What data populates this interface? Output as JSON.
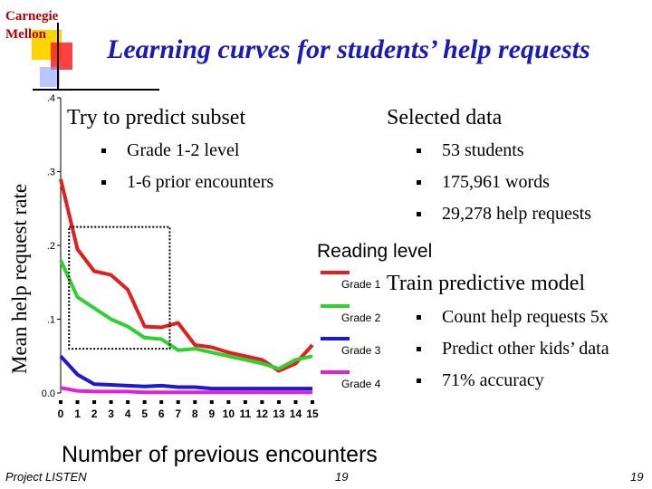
{
  "logo": {
    "line1": "Carnegie",
    "line2": "Mellon"
  },
  "slide_title": "Learning curves for students’ help requests",
  "left_box": {
    "heading": "Try to predict subset",
    "bullets": [
      "Grade 1-2 level",
      "1-6 prior encounters"
    ]
  },
  "right_box": {
    "heading": "Selected data",
    "bullets": [
      "53 students",
      "175,961 words",
      "29,278 help requests"
    ]
  },
  "train_box": {
    "heading": "Train predictive model",
    "bullets": [
      "Count help requests 5x",
      "Predict other kids’ data",
      "71% accuracy"
    ]
  },
  "footer": {
    "left": "Project LISTEN",
    "middle": "19",
    "right": "19"
  },
  "chart_data": {
    "type": "line",
    "title": "",
    "xlabel": "Number of previous encounters",
    "ylabel": "Mean help request rate",
    "x": [
      0,
      1,
      2,
      3,
      4,
      5,
      6,
      7,
      8,
      9,
      10,
      11,
      12,
      13,
      14,
      15
    ],
    "x_ticks": [
      "0",
      "1",
      "2",
      "3",
      "4",
      "5",
      "6",
      "7",
      "8",
      "9",
      "10",
      "11",
      "12",
      "13",
      "14",
      "15"
    ],
    "y_ticks": [
      0.0,
      0.1,
      0.2,
      0.3,
      0.4
    ],
    "y_tick_labels": [
      "0.0",
      ".1",
      ".2",
      ".3",
      ".4"
    ],
    "ylim": [
      0,
      0.4
    ],
    "xlim": [
      0,
      15
    ],
    "legend_title": "Reading level",
    "legend_position": "right",
    "highlight_box": {
      "x_range": [
        0.5,
        6.5
      ],
      "y_range": [
        0.06,
        0.225
      ]
    },
    "series": [
      {
        "name": "Grade 1",
        "color": "#e02020",
        "values": [
          0.29,
          0.195,
          0.165,
          0.16,
          0.14,
          0.09,
          0.089,
          0.095,
          0.065,
          0.062,
          0.055,
          0.05,
          0.045,
          0.03,
          0.04,
          0.065
        ]
      },
      {
        "name": "Grade 2",
        "color": "#30d030",
        "values": [
          0.18,
          0.13,
          0.115,
          0.1,
          0.09,
          0.075,
          0.073,
          0.058,
          0.06,
          0.055,
          0.05,
          0.045,
          0.04,
          0.033,
          0.045,
          0.05
        ]
      },
      {
        "name": "Grade 3",
        "color": "#1a1ad0",
        "values": [
          0.05,
          0.025,
          0.012,
          0.011,
          0.01,
          0.009,
          0.01,
          0.008,
          0.008,
          0.006,
          0.006,
          0.006,
          0.006,
          0.006,
          0.006,
          0.006
        ]
      },
      {
        "name": "Grade 4",
        "color": "#e020e0",
        "values": [
          0.007,
          0.003,
          0.002,
          0.002,
          0.002,
          0.001,
          0.001,
          0.001,
          0.001,
          0.001,
          0.001,
          0.001,
          0.001,
          0.001,
          0.001,
          0.001
        ]
      }
    ]
  }
}
